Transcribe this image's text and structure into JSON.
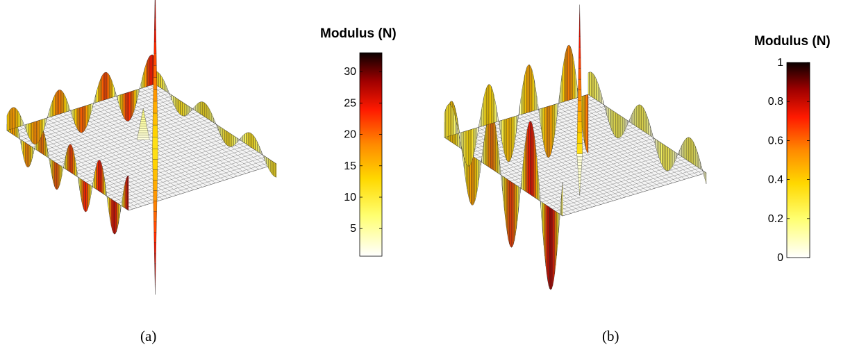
{
  "panels": [
    {
      "caption": "(a)",
      "colorbar": {
        "title": "Modulus (N)",
        "min": 0.6,
        "max": 33,
        "ticks": [
          5,
          10,
          15,
          20,
          25,
          30
        ]
      }
    },
    {
      "caption": "(b)",
      "colorbar": {
        "title": "Modulus (N)",
        "min": 0,
        "max": 1,
        "ticks": [
          0,
          0.2,
          0.4,
          0.6,
          0.8,
          1
        ]
      }
    }
  ],
  "chart_data": [
    {
      "type": "surface",
      "colormap": "hot-reversed",
      "colorbar_label": "Modulus (N)",
      "colorbar_range": [
        0.6,
        33
      ],
      "colorbar_ticks": [
        5,
        10,
        15,
        20,
        25,
        30
      ]
    },
    {
      "type": "surface",
      "colormap": "hot-reversed",
      "colorbar_label": "Modulus (N)",
      "colorbar_range": [
        0,
        1
      ],
      "colorbar_ticks": [
        0,
        0.2,
        0.4,
        0.6,
        0.8,
        1
      ]
    }
  ]
}
